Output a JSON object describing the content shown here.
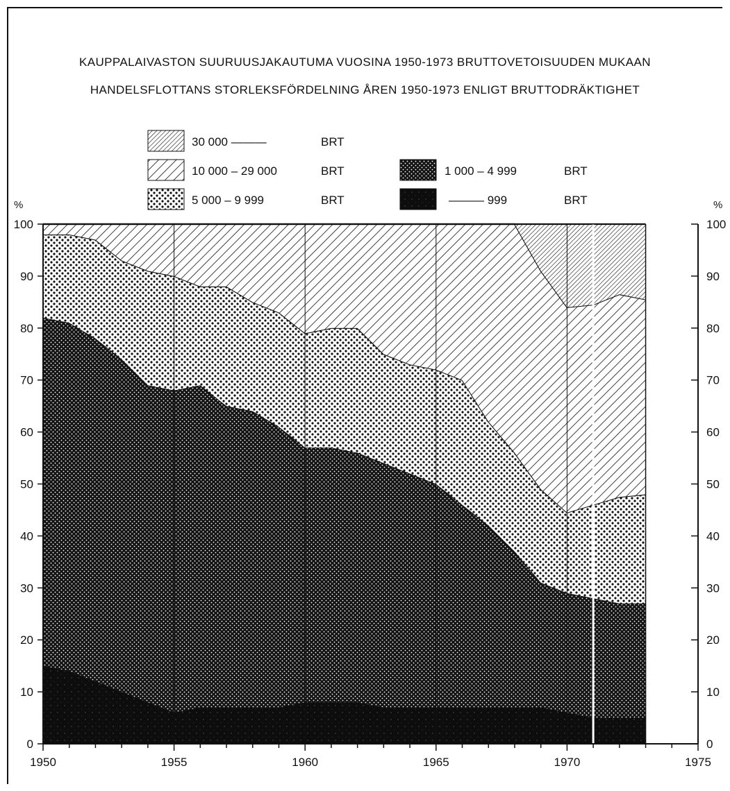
{
  "chart_data": {
    "type": "area",
    "stacked": true,
    "percent": true,
    "title": "KAUPPALAIVASTON SUURUUSJAKAUTUMA VUOSINA 1950-1973 BRUTTOVETOISUUDEN MUKAAN",
    "subtitle": "HANDELSFLOTTANS STORLEKSFÖRDELNING ÅREN 1950-1973 ENLIGT BRUTTODRÄKTIGHET",
    "ylabel_left": "%",
    "ylabel_right": "%",
    "xlim": [
      1950,
      1975
    ],
    "ylim": [
      0,
      100
    ],
    "xticks": [
      "1950",
      "1955",
      "1960",
      "1965",
      "1970",
      "1975"
    ],
    "yticks": [
      "0",
      "10",
      "20",
      "30",
      "40",
      "50",
      "60",
      "70",
      "80",
      "90",
      "100"
    ],
    "grid_x_years": [
      1955,
      1960,
      1965,
      1970,
      1971
    ],
    "x": [
      1950,
      1951,
      1952,
      1953,
      1954,
      1955,
      1956,
      1957,
      1958,
      1959,
      1960,
      1961,
      1962,
      1963,
      1964,
      1965,
      1966,
      1967,
      1968,
      1969,
      1970,
      1971,
      1972,
      1973
    ],
    "cumulative_tops": [
      {
        "name": "— 999 BRT",
        "values": [
          15,
          14,
          12,
          10,
          8,
          6,
          7,
          7,
          7,
          7,
          8,
          8,
          8,
          7,
          7,
          7,
          7,
          7,
          7,
          7,
          6,
          5,
          5,
          5
        ]
      },
      {
        "name": "1 000 – 4 999 BRT",
        "values": [
          82,
          81,
          78,
          74,
          69,
          68,
          69,
          65,
          64,
          61,
          57,
          57,
          56,
          54,
          52,
          50,
          46,
          42,
          37,
          31,
          29,
          28,
          27,
          27
        ]
      },
      {
        "name": "5 000 – 9 999 BRT",
        "values": [
          98,
          98,
          97,
          93,
          91,
          90,
          88,
          88,
          85,
          83,
          79,
          80,
          80,
          75,
          73,
          72,
          70,
          62,
          56,
          49,
          44.5,
          46,
          47.5,
          48
        ]
      },
      {
        "name": "10 000 – 29 000 BRT",
        "values": [
          100,
          100,
          100,
          100,
          100,
          100,
          100,
          100,
          100,
          100,
          100,
          100,
          100,
          100,
          100,
          100,
          100,
          100,
          100,
          91,
          84,
          84.5,
          86.5,
          85.5
        ]
      },
      {
        "name": "30 000 — BRT",
        "values": [
          100,
          100,
          100,
          100,
          100,
          100,
          100,
          100,
          100,
          100,
          100,
          100,
          100,
          100,
          100,
          100,
          100,
          100,
          100,
          100,
          100,
          100,
          100,
          100
        ]
      }
    ],
    "legend": [
      {
        "range": "30 000 ———",
        "unit": "BRT",
        "pattern": "dense-hatch"
      },
      {
        "range": "10 000 – 29 000",
        "unit": "BRT",
        "pattern": "hatch"
      },
      {
        "range": "5 000 – 9 999",
        "unit": "BRT",
        "pattern": "dots"
      },
      {
        "range": "1 000 – 4 999",
        "unit": "BRT",
        "pattern": "dark-dots"
      },
      {
        "range": "——— 999",
        "unit": "BRT",
        "pattern": "solid"
      }
    ],
    "legend_placement": "top"
  }
}
